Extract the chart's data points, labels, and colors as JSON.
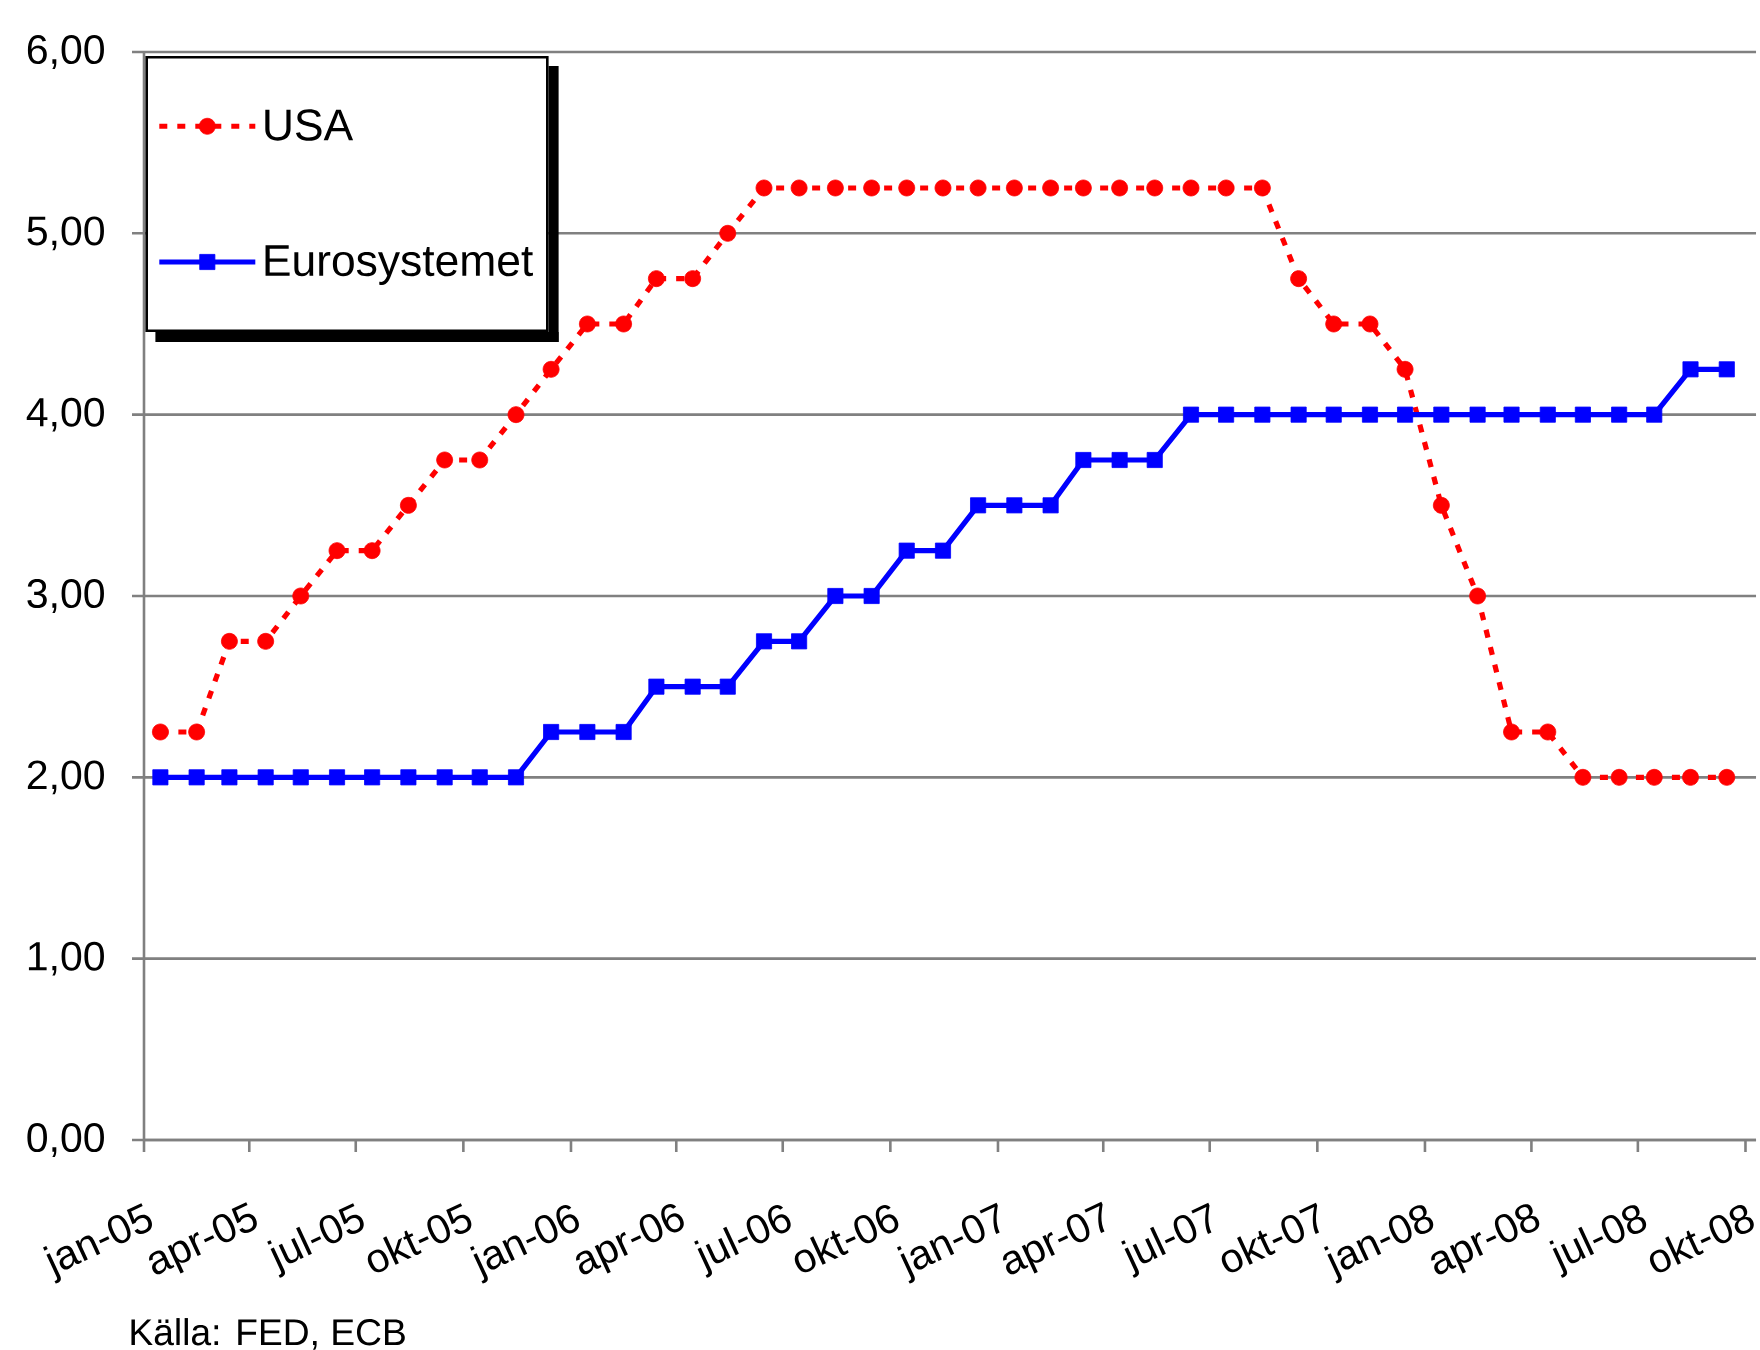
{
  "chart_data": {
    "type": "line",
    "x": [
      "2005-01-15",
      "2005-02-15",
      "2005-03-15",
      "2005-04-15",
      "2005-05-15",
      "2005-06-15",
      "2005-07-15",
      "2005-08-15",
      "2005-09-15",
      "2005-10-15",
      "2005-11-15",
      "2005-12-15",
      "2006-01-15",
      "2006-02-15",
      "2006-03-15",
      "2006-04-15",
      "2006-05-15",
      "2006-06-15",
      "2006-07-15",
      "2006-08-15",
      "2006-09-15",
      "2006-10-15",
      "2006-11-15",
      "2006-12-15",
      "2007-01-15",
      "2007-02-15",
      "2007-03-15",
      "2007-04-15",
      "2007-05-15",
      "2007-06-15",
      "2007-07-15",
      "2007-08-15",
      "2007-09-15",
      "2007-10-15",
      "2007-11-15",
      "2007-12-15",
      "2008-01-15",
      "2008-02-15",
      "2008-03-15",
      "2008-04-15",
      "2008-05-15",
      "2008-06-15",
      "2008-07-15",
      "2008-08-15",
      "2008-09-15"
    ],
    "series": [
      {
        "name": "USA",
        "color": "#ff0000",
        "line_style": "dashed",
        "marker": "circle",
        "values": [
          2.25,
          2.25,
          2.75,
          2.75,
          3.0,
          3.25,
          3.25,
          3.5,
          3.75,
          3.75,
          4.0,
          4.25,
          4.5,
          4.5,
          4.75,
          4.75,
          5.0,
          5.25,
          5.25,
          5.25,
          5.25,
          5.25,
          5.25,
          5.25,
          5.25,
          5.25,
          5.25,
          5.25,
          5.25,
          5.25,
          5.25,
          5.25,
          4.75,
          4.5,
          4.5,
          4.25,
          3.5,
          3.0,
          2.25,
          2.25,
          2.0,
          2.0,
          2.0,
          2.0,
          2.0
        ]
      },
      {
        "name": "Eurosystemet",
        "color": "#0000ff",
        "line_style": "solid",
        "marker": "square",
        "values": [
          2.0,
          2.0,
          2.0,
          2.0,
          2.0,
          2.0,
          2.0,
          2.0,
          2.0,
          2.0,
          2.0,
          2.25,
          2.25,
          2.25,
          2.5,
          2.5,
          2.5,
          2.75,
          2.75,
          3.0,
          3.0,
          3.25,
          3.25,
          3.5,
          3.5,
          3.5,
          3.75,
          3.75,
          3.75,
          4.0,
          4.0,
          4.0,
          4.0,
          4.0,
          4.0,
          4.0,
          4.0,
          4.0,
          4.0,
          4.0,
          4.0,
          4.0,
          4.0,
          4.25,
          4.25
        ]
      }
    ],
    "xlim": [
      "2005-01",
      "2008-10-10"
    ],
    "xticks": [
      {
        "value": "2005-01",
        "label": "jan-05"
      },
      {
        "value": "2005-04",
        "label": "apr-05"
      },
      {
        "value": "2005-07",
        "label": "jul-05"
      },
      {
        "value": "2005-10",
        "label": "okt-05"
      },
      {
        "value": "2006-01",
        "label": "jan-06"
      },
      {
        "value": "2006-04",
        "label": "apr-06"
      },
      {
        "value": "2006-07",
        "label": "jul-06"
      },
      {
        "value": "2006-10",
        "label": "okt-06"
      },
      {
        "value": "2007-01",
        "label": "jan-07"
      },
      {
        "value": "2007-04",
        "label": "apr-07"
      },
      {
        "value": "2007-07",
        "label": "jul-07"
      },
      {
        "value": "2007-10",
        "label": "okt-07"
      },
      {
        "value": "2008-01",
        "label": "jan-08"
      },
      {
        "value": "2008-04",
        "label": "apr-08"
      },
      {
        "value": "2008-07",
        "label": "jul-08"
      },
      {
        "value": "2008-10",
        "label": "okt-08"
      }
    ],
    "ylim": [
      0,
      6
    ],
    "yticks": [
      {
        "value": 0,
        "label": "0,00"
      },
      {
        "value": 1,
        "label": "1,00"
      },
      {
        "value": 2,
        "label": "2,00"
      },
      {
        "value": 3,
        "label": "3,00"
      },
      {
        "value": 4,
        "label": "4,00"
      },
      {
        "value": 5,
        "label": "5,00"
      },
      {
        "value": 6,
        "label": "6,00"
      }
    ],
    "grid": "y",
    "legend": "top left",
    "annotations": [
      "Källa: FED, ECB"
    ]
  }
}
